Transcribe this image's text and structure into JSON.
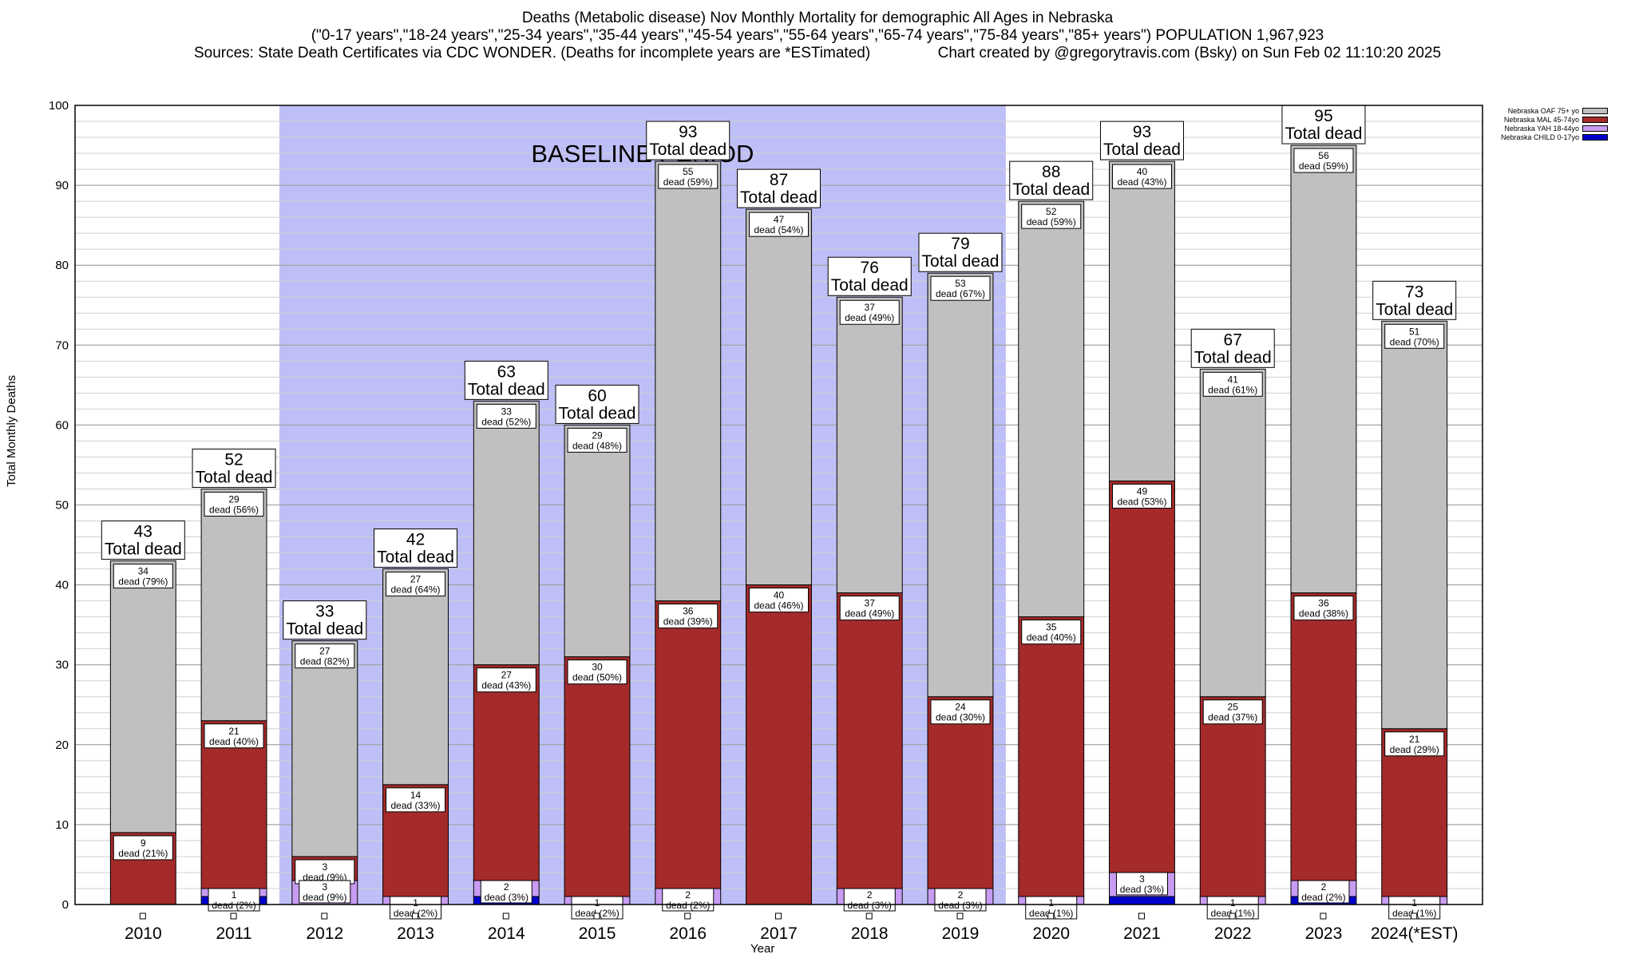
{
  "title": {
    "line1": "Deaths (Metabolic disease) Nov Monthly Mortality for demographic All Ages in Nebraska",
    "line2": "(\"0-17 years\",\"18-24 years\",\"25-34 years\",\"35-44 years\",\"45-54 years\",\"55-64 years\",\"65-74 years\",\"75-84 years\",\"85+ years\") POPULATION 1,967,923",
    "line3": "Sources: State Death Certificates via CDC WONDER. (Deaths for incomplete years are *ESTimated)                Chart created by @gregorytravis.com (Bsky) on Sun Feb 02 11:10:20 2025"
  },
  "chart_data": {
    "type": "bar",
    "stacked": true,
    "title": "Deaths (Metabolic disease) Nov Monthly Mortality for demographic All Ages in Nebraska",
    "xlabel": "Year",
    "ylabel": "Total Monthly Deaths",
    "ylim": [
      0,
      100
    ],
    "yticks": [
      0,
      10,
      20,
      30,
      40,
      50,
      60,
      70,
      80,
      90,
      100
    ],
    "grid": true,
    "legend_position": "top-right",
    "baseline_label": "BASELINE PERIOD",
    "baseline_range": [
      "2012",
      "2019"
    ],
    "baseline_color": "#bfbff7",
    "total_label": "Total dead",
    "segment_label_word": "dead",
    "categories": [
      "2010",
      "2011",
      "2012",
      "2013",
      "2014",
      "2015",
      "2016",
      "2017",
      "2018",
      "2019",
      "2020",
      "2021",
      "2022",
      "2023",
      "2024(*EST)"
    ],
    "totals": [
      43,
      52,
      33,
      42,
      63,
      60,
      93,
      87,
      76,
      79,
      88,
      93,
      67,
      95,
      73
    ],
    "series": [
      {
        "name": "Nebraska CHILD 0-17yo",
        "color": "#0000cc",
        "values": [
          0,
          1,
          0,
          0,
          1,
          0,
          0,
          0,
          0,
          0,
          0,
          1,
          0,
          1,
          0
        ],
        "pct": [
          0,
          2,
          0,
          0,
          2,
          0,
          0,
          0,
          0,
          0,
          0,
          1,
          0,
          1,
          0
        ]
      },
      {
        "name": "Nebraska YAH 18-44yo",
        "color": "#c89cf2",
        "values": [
          0,
          1,
          3,
          1,
          2,
          1,
          2,
          0,
          2,
          2,
          1,
          3,
          1,
          2,
          1
        ],
        "pct": [
          0,
          2,
          9,
          2,
          3,
          2,
          2,
          0,
          3,
          3,
          1,
          3,
          1,
          2,
          1
        ]
      },
      {
        "name": "Nebraska MAL 45-74yo",
        "color": "#a52a2a",
        "values": [
          9,
          21,
          3,
          14,
          27,
          30,
          36,
          40,
          37,
          24,
          35,
          49,
          25,
          36,
          21
        ],
        "pct": [
          21,
          40,
          9,
          33,
          43,
          50,
          39,
          46,
          49,
          30,
          40,
          53,
          37,
          38,
          29
        ]
      },
      {
        "name": "Nebraska OAF 75+ yo",
        "color": "#c0c0c0",
        "values": [
          34,
          29,
          27,
          27,
          33,
          29,
          55,
          47,
          37,
          53,
          52,
          40,
          41,
          56,
          51
        ],
        "pct": [
          79,
          56,
          82,
          64,
          52,
          48,
          59,
          54,
          49,
          67,
          59,
          43,
          61,
          59,
          70
        ]
      }
    ]
  }
}
